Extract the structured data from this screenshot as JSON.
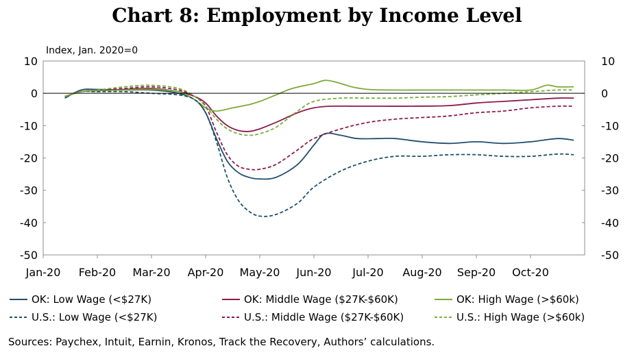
{
  "title": "Chart 8: Employment by Income Level",
  "y_unit_label": "Index, Jan. 2020=0",
  "sources": "Sources: Paychex, Intuit, Earnin, Kronos, Track the Recovery, Authors’ calculations.",
  "colors": {
    "low": "#1f4e6b",
    "middle": "#8b1a4a",
    "high": "#7aab3a"
  },
  "chart_data": {
    "type": "line",
    "title": "Chart 8: Employment by Income Level",
    "ylabel": "Index, Jan. 2020=0",
    "ylim": [
      -50,
      10
    ],
    "yticks": [
      "10",
      "0",
      "-10",
      "-20",
      "-30",
      "-40",
      "-50"
    ],
    "xlim": [
      0,
      10
    ],
    "xticks": [
      "Jan-20",
      "Feb-20",
      "Mar-20",
      "Apr-20",
      "May-20",
      "Jun-20",
      "Jul-20",
      "Aug-20",
      "Sep-20",
      "Oct-20"
    ],
    "grid": false,
    "legend_position": "bottom",
    "series": [
      {
        "name": "OK: Low Wage (<$27K)",
        "color": "#1f4e6b",
        "style": "solid",
        "x": [
          0.4,
          0.7,
          1.0,
          1.5,
          2.0,
          2.5,
          2.8,
          3.0,
          3.2,
          3.4,
          3.6,
          3.8,
          4.0,
          4.3,
          4.7,
          5.0,
          5.2,
          5.5,
          5.8,
          6.2,
          6.5,
          7.0,
          7.5,
          8.0,
          8.5,
          9.0,
          9.5,
          9.8
        ],
        "y": [
          -1.5,
          1,
          1.2,
          1,
          1,
          0,
          -2,
          -6,
          -14,
          -21,
          -24.5,
          -26,
          -26.5,
          -26,
          -22,
          -16,
          -12.5,
          -13,
          -14,
          -14,
          -14,
          -15,
          -15.5,
          -15,
          -15.5,
          -15,
          -14,
          -14.5
        ]
      },
      {
        "name": "OK: Middle Wage ($27K-$60K)",
        "color": "#8b1a4a",
        "style": "solid",
        "x": [
          0.4,
          0.7,
          1.0,
          1.5,
          2.0,
          2.5,
          2.8,
          3.0,
          3.2,
          3.4,
          3.6,
          3.8,
          4.0,
          4.3,
          4.7,
          5.0,
          5.3,
          5.8,
          6.3,
          6.8,
          7.5,
          8.0,
          8.5,
          9.0,
          9.5,
          9.8
        ],
        "y": [
          -1,
          0.5,
          0.8,
          1.2,
          1.5,
          0.5,
          -1,
          -3,
          -7,
          -10,
          -11.5,
          -11.8,
          -11,
          -9,
          -6,
          -4.5,
          -4,
          -4,
          -4,
          -4,
          -3.8,
          -3,
          -2.5,
          -2,
          -1.5,
          -1.5
        ]
      },
      {
        "name": "OK: High Wage (>$60k)",
        "color": "#7aab3a",
        "style": "solid",
        "x": [
          0.4,
          0.7,
          1.0,
          1.5,
          2.0,
          2.5,
          2.8,
          3.0,
          3.2,
          3.5,
          3.8,
          4.0,
          4.3,
          4.6,
          5.0,
          5.2,
          5.4,
          5.7,
          6.0,
          6.5,
          7.0,
          7.5,
          8.0,
          8.5,
          9.0,
          9.3,
          9.5,
          9.8
        ],
        "y": [
          -1,
          0.5,
          0.8,
          1,
          1.2,
          0.5,
          -2,
          -4.5,
          -5.5,
          -4.5,
          -3.5,
          -2.5,
          -0.5,
          1.5,
          3,
          4,
          3.5,
          2,
          1.2,
          1,
          1,
          1,
          1,
          1,
          1,
          2.5,
          2,
          2
        ]
      },
      {
        "name": "U.S.: Low Wage (<$27K)",
        "color": "#1f4e6b",
        "style": "dashed",
        "x": [
          0.4,
          0.7,
          1.0,
          1.5,
          2.0,
          2.5,
          2.8,
          3.0,
          3.2,
          3.4,
          3.6,
          3.8,
          4.0,
          4.3,
          4.7,
          5.0,
          5.5,
          6.0,
          6.5,
          7.0,
          7.5,
          8.0,
          8.5,
          9.0,
          9.5,
          9.8
        ],
        "y": [
          -1,
          0.5,
          0.5,
          0.5,
          0,
          -0.5,
          -2,
          -6,
          -15,
          -26,
          -33,
          -36.5,
          -38,
          -37.5,
          -34,
          -29,
          -24,
          -21,
          -19.5,
          -19.5,
          -19,
          -19,
          -19.5,
          -19.5,
          -18.8,
          -19
        ]
      },
      {
        "name": "U.S.: Middle Wage ($27K-$60K)",
        "color": "#8b1a4a",
        "style": "dashed",
        "x": [
          0.4,
          0.7,
          1.0,
          1.5,
          2.0,
          2.5,
          2.8,
          3.0,
          3.2,
          3.4,
          3.6,
          3.8,
          4.0,
          4.3,
          4.7,
          5.0,
          5.5,
          6.0,
          6.5,
          7.0,
          7.5,
          8.0,
          8.5,
          9.0,
          9.5,
          9.8
        ],
        "y": [
          -1,
          0.5,
          1,
          1.5,
          2,
          1,
          -1,
          -4,
          -12,
          -19,
          -22.5,
          -23.5,
          -23.5,
          -22,
          -17.5,
          -14,
          -11,
          -9,
          -8,
          -7.5,
          -7,
          -6,
          -5.5,
          -4.5,
          -4,
          -4
        ]
      },
      {
        "name": "U.S.: High Wage (>$60k)",
        "color": "#7aab3a",
        "style": "dashed",
        "x": [
          0.4,
          0.7,
          1.0,
          1.5,
          2.0,
          2.5,
          2.8,
          3.0,
          3.2,
          3.4,
          3.6,
          3.8,
          4.0,
          4.3,
          4.7,
          5.0,
          5.5,
          6.0,
          6.5,
          7.0,
          7.5,
          8.0,
          8.5,
          9.0,
          9.5,
          9.8
        ],
        "y": [
          -1,
          0.5,
          1,
          2,
          2.5,
          1.5,
          -1,
          -4,
          -8,
          -11,
          -12.5,
          -13,
          -12.5,
          -10.5,
          -5.5,
          -2.5,
          -1.5,
          -1.5,
          -1.5,
          -1.2,
          -1,
          -0.5,
          0,
          0.5,
          1,
          1
        ]
      }
    ]
  }
}
